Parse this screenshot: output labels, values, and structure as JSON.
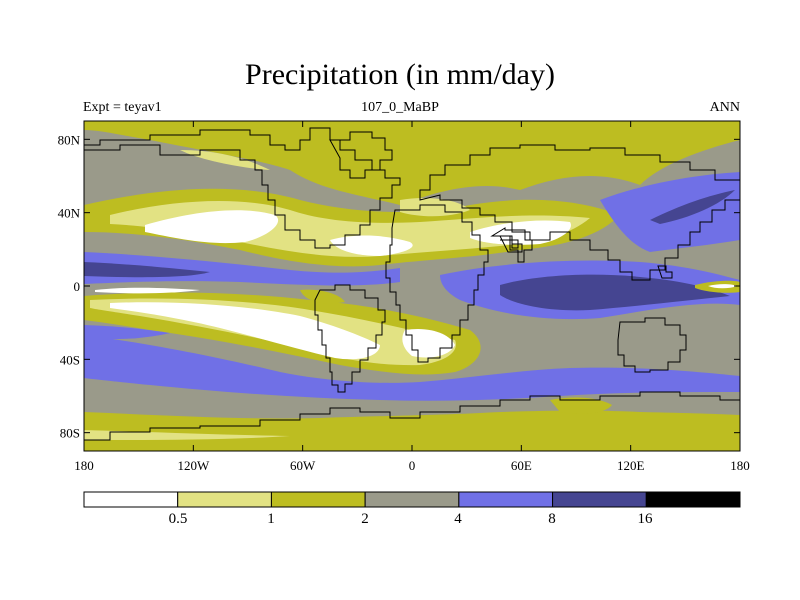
{
  "title": "Precipitation (in mm/day)",
  "left_label": "Expt = teyav1",
  "center_label": "107_0_MaBP",
  "right_label": "ANN",
  "map": {
    "lat_ticks": [
      "80N",
      "40N",
      "0",
      "40S",
      "80S"
    ],
    "lon_ticks": [
      "180",
      "120W",
      "60W",
      "0",
      "60E",
      "120E",
      "180"
    ],
    "lat_range": [
      -90,
      90
    ],
    "lon_range": [
      -180,
      180
    ]
  },
  "colorbar": {
    "labels": [
      "0.5",
      "1",
      "2",
      "4",
      "8",
      "16"
    ],
    "levels": [
      0.5,
      1,
      2,
      4,
      8,
      16
    ],
    "colors": [
      "#ffffff",
      "#e2e283",
      "#bdbd21",
      "#9a9a8a",
      "#7070e6",
      "#454591",
      "#000000"
    ]
  }
}
